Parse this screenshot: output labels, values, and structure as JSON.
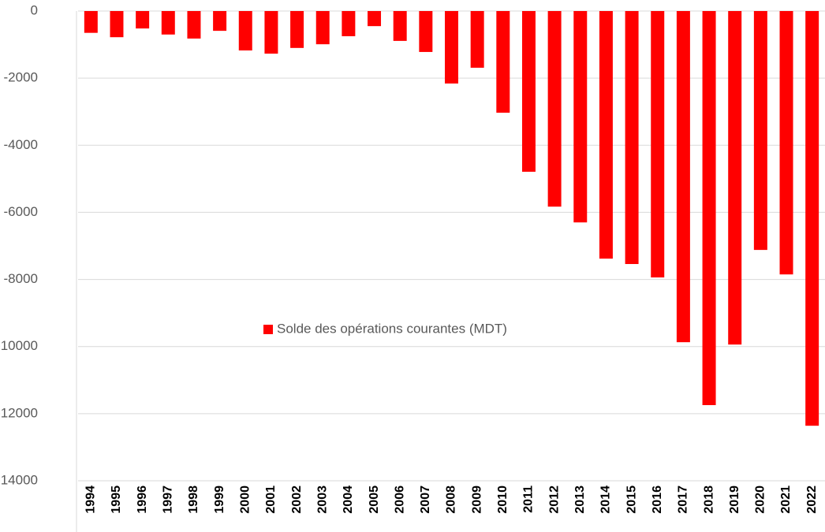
{
  "chart_data": {
    "type": "bar",
    "categories": [
      "1994",
      "1995",
      "1996",
      "1997",
      "1998",
      "1999",
      "2000",
      "2001",
      "2002",
      "2003",
      "2004",
      "2005",
      "2006",
      "2007",
      "2008",
      "2009",
      "2010",
      "2011",
      "2012",
      "2013",
      "2014",
      "2015",
      "2016",
      "2017",
      "2018",
      "2019",
      "2020",
      "2021",
      "2022"
    ],
    "series": [
      {
        "name": "Solde des opérations courantes (MDT)",
        "color": "#ff0000",
        "values": [
          -650,
          -780,
          -520,
          -700,
          -820,
          -590,
          -1175,
          -1270,
          -1100,
          -990,
          -750,
          -450,
          -890,
          -1220,
          -2160,
          -1690,
          -3030,
          -4790,
          -5830,
          -6300,
          -7380,
          -7540,
          -7940,
          -9870,
          -11745,
          -9940,
          -7120,
          -7850,
          -12360
        ]
      }
    ],
    "ylim": [
      -14000,
      0
    ],
    "yticks": [
      0,
      -2000,
      -4000,
      -6000,
      -8000,
      -10000,
      -12000,
      -14000
    ],
    "grid": true,
    "legend": "center"
  }
}
